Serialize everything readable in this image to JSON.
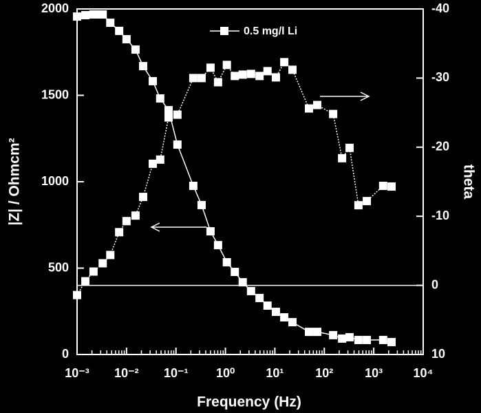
{
  "chart_data": {
    "type": "line",
    "x_label": "Frequency (Hz)",
    "y_label": "|Z| / Ohmcm²",
    "y2_label": "theta",
    "xscale": "log",
    "xlim": [
      0.001,
      10000
    ],
    "xticks": [
      {
        "value": 0.001,
        "label": "10⁻³"
      },
      {
        "value": 0.01,
        "label": "10⁻²"
      },
      {
        "value": 0.1,
        "label": "10⁻¹"
      },
      {
        "value": 1,
        "label": "10⁰"
      },
      {
        "value": 10,
        "label": "10¹"
      },
      {
        "value": 100,
        "label": "10²"
      },
      {
        "value": 1000,
        "label": "10³"
      },
      {
        "value": 10000,
        "label": "10⁴"
      }
    ],
    "ylim": [
      0,
      2000
    ],
    "yticks": [
      0,
      500,
      1000,
      1500,
      2000
    ],
    "y2lim": [
      10,
      -40
    ],
    "y2ticks": [
      -40,
      -30,
      -20,
      -10,
      0,
      10
    ],
    "series": [
      {
        "name": "0.5 mg/l Li",
        "color": "#ffffff",
        "style": "solid",
        "x": [
          0.001,
          0.00147,
          0.00215,
          0.0026,
          0.0033,
          0.0047,
          0.0071,
          0.01,
          0.0152,
          0.0217,
          0.034,
          0.048,
          0.071,
          0.107,
          0.224,
          0.33,
          0.5,
          0.71,
          1.07,
          1.55,
          2.24,
          3.3,
          4.9,
          7.1,
          10.5,
          15.5,
          22.7,
          49,
          72,
          151,
          229,
          324,
          490,
          724,
          1550,
          2290
        ],
        "values": [
          1956,
          1964,
          1968,
          1968,
          1968,
          1920,
          1873,
          1825,
          1765,
          1669,
          1582,
          1482,
          1414,
          1215,
          976,
          865,
          713,
          633,
          534,
          478,
          418,
          367,
          327,
          283,
          247,
          215,
          187,
          131,
          131,
          112,
          92,
          100,
          84,
          84,
          84,
          72
        ]
      },
      {
        "color": "#ffffff",
        "style": "dotted",
        "axis": "y2",
        "x": [
          0.001,
          0.00147,
          0.00215,
          0.0033,
          0.0047,
          0.0071,
          0.01,
          0.0152,
          0.0217,
          0.034,
          0.048,
          0.071,
          0.107,
          0.224,
          0.33,
          0.5,
          0.71,
          1.07,
          1.55,
          2.24,
          3.3,
          4.9,
          7.1,
          10.5,
          15.5,
          22.7,
          49,
          72,
          151,
          229,
          324,
          490,
          724,
          1550,
          2290
        ],
        "values": [
          1.4,
          -0.6,
          -2.0,
          -3.2,
          -4.4,
          -7.7,
          -9.3,
          -10.1,
          -12.8,
          -17.6,
          -18.2,
          -24.3,
          -24.7,
          -30,
          -30,
          -31.5,
          -29.4,
          -31.9,
          -30.3,
          -30.5,
          -30.6,
          -30.3,
          -31.0,
          -30.1,
          -32.3,
          -31.2,
          -25.6,
          -26.1,
          -24.8,
          -18.4,
          -19.9,
          -11.6,
          -12.2,
          -14.4,
          -14.3
        ]
      }
    ]
  }
}
